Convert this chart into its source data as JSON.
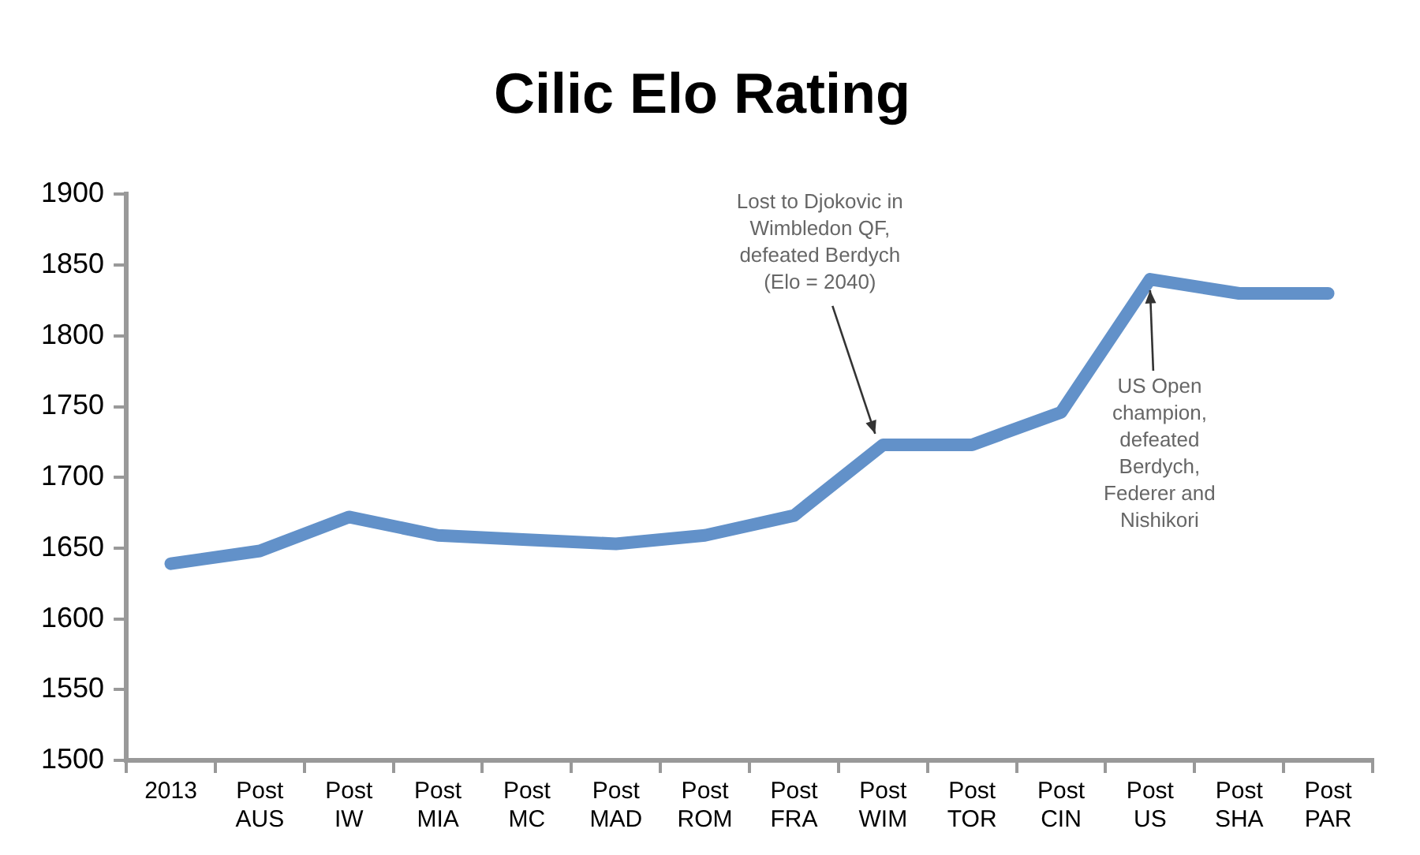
{
  "chart_data": {
    "type": "line",
    "title": "Cilic Elo Rating",
    "categories": [
      "2013",
      "Post AUS",
      "Post IW",
      "Post MIA",
      "Post MC",
      "Post MAD",
      "Post ROM",
      "Post FRA",
      "Post WIM",
      "Post TOR",
      "Post CIN",
      "Post US",
      "Post SHA",
      "Post PAR"
    ],
    "series": [
      {
        "color": "#6291c9",
        "values": [
          1639,
          1648,
          1672,
          1659,
          1656,
          1653,
          1659,
          1673,
          1723,
          1723,
          1746,
          1840,
          1830,
          1830
        ]
      }
    ],
    "ylim": [
      1500,
      1900
    ],
    "yticks": [
      1500,
      1550,
      1600,
      1650,
      1700,
      1750,
      1800,
      1850,
      1900
    ],
    "grid": false,
    "legend": false,
    "marker": "none",
    "line_style": "solid",
    "annotations": [
      {
        "text": "Lost to Djokovic in Wimbledon QF, defeated Berdych (Elo = 2040)",
        "x": "Post WIM",
        "y": 1723
      },
      {
        "text": "US Open champion, defeated Berdych, Federer and Nishikori",
        "x": "Post US",
        "y": 1840
      }
    ]
  }
}
